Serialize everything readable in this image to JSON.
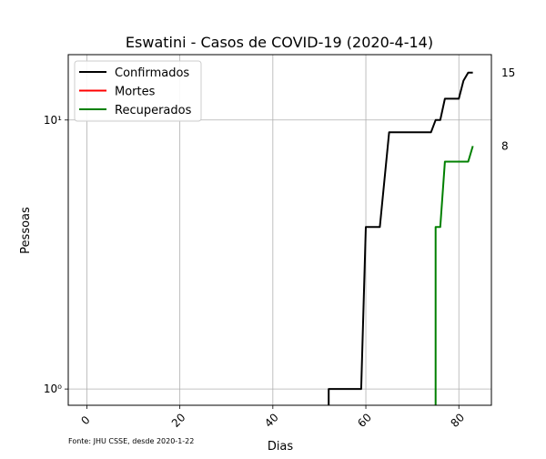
{
  "chart_data": {
    "type": "line",
    "title": "Eswatini - Casos de COVID-19 (2020-4-14)",
    "xlabel": "Dias",
    "ylabel": "Pessoas",
    "yscale": "log",
    "xlim": [
      -4,
      87
    ],
    "ylim": [
      0.87,
      17.5
    ],
    "xticks": [
      0,
      20,
      40,
      60,
      80
    ],
    "yticks": [
      {
        "value": 1,
        "label": "10⁰"
      },
      {
        "value": 10,
        "label": "10¹"
      }
    ],
    "grid": true,
    "legend_position": "top-left",
    "source_note": "Fonte: JHU CSSE, desde 2020-1-22",
    "series": [
      {
        "name": "Confirmados",
        "color": "#000000",
        "points": [
          [
            52,
            0.5
          ],
          [
            52,
            1
          ],
          [
            59,
            1
          ],
          [
            60,
            4
          ],
          [
            63,
            4
          ],
          [
            65,
            9
          ],
          [
            74,
            9
          ],
          [
            75,
            10
          ],
          [
            76,
            10
          ],
          [
            77,
            12
          ],
          [
            80,
            12
          ],
          [
            81,
            14
          ],
          [
            82,
            15
          ],
          [
            83,
            15
          ]
        ]
      },
      {
        "name": "Mortes",
        "color": "#ff0000",
        "points": []
      },
      {
        "name": "Recuperados",
        "color": "#008000",
        "points": [
          [
            75,
            0.5
          ],
          [
            75,
            4
          ],
          [
            76,
            4
          ],
          [
            77,
            7
          ],
          [
            82,
            7
          ],
          [
            83,
            8
          ]
        ]
      }
    ],
    "end_labels": [
      {
        "value": 15,
        "label": "15"
      },
      {
        "value": 8,
        "label": "8"
      }
    ]
  }
}
